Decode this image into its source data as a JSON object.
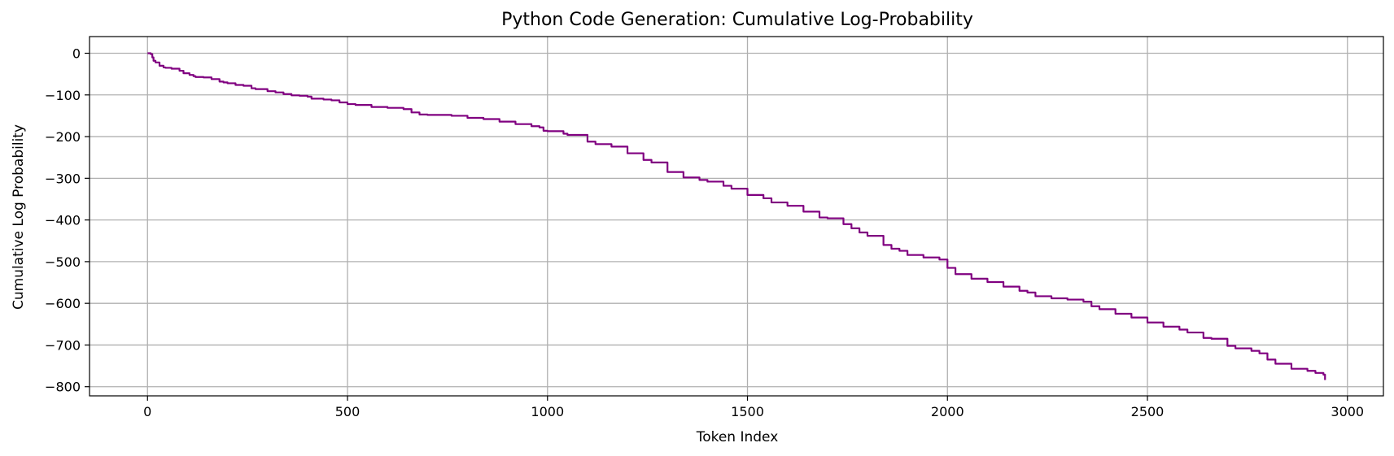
{
  "chart_data": {
    "type": "line",
    "title": "Python Code Generation: Cumulative Log-Probability",
    "xlabel": "Token Index",
    "ylabel": "Cumulative Log Probability",
    "xlim": [
      -145,
      3090
    ],
    "ylim": [
      -822,
      40
    ],
    "x_ticks": [
      0,
      500,
      1000,
      1500,
      2000,
      2500,
      3000
    ],
    "y_ticks": [
      0,
      -100,
      -200,
      -300,
      -400,
      -500,
      -600,
      -700,
      -800
    ],
    "x_tick_labels": [
      "0",
      "500",
      "1000",
      "1500",
      "2000",
      "2500",
      "3000"
    ],
    "y_tick_labels": [
      "0",
      "−100",
      "−200",
      "−300",
      "−400",
      "−500",
      "−600",
      "−700",
      "−800"
    ],
    "grid": true,
    "line_color": "#800080",
    "series": [
      {
        "x": [
          0,
          8,
          12,
          15,
          20,
          30,
          40,
          45,
          60,
          80,
          90,
          105,
          115,
          120,
          140,
          160,
          180,
          190,
          200,
          220,
          240,
          260,
          270,
          300,
          320,
          340,
          360,
          380,
          400,
          410,
          440,
          460,
          480,
          500,
          520,
          560,
          600,
          640,
          660,
          680,
          700,
          760,
          800,
          840,
          880,
          920,
          960,
          980,
          990,
          1000,
          1040,
          1050,
          1100,
          1120,
          1160,
          1200,
          1240,
          1260,
          1300,
          1340,
          1380,
          1400,
          1440,
          1460,
          1500,
          1540,
          1560,
          1600,
          1640,
          1680,
          1700,
          1740,
          1760,
          1780,
          1800,
          1840,
          1860,
          1880,
          1900,
          1940,
          1980,
          1990,
          2000,
          2020,
          2060,
          2100,
          2140,
          2180,
          2200,
          2220,
          2260,
          2300,
          2340,
          2360,
          2380,
          2420,
          2460,
          2500,
          2540,
          2580,
          2600,
          2640,
          2660,
          2700,
          2720,
          2760,
          2780,
          2800,
          2820,
          2860,
          2900,
          2920,
          2940,
          2944
        ],
        "y": [
          0,
          -2,
          -10,
          -18,
          -22,
          -30,
          -34,
          -35,
          -37,
          -42,
          -48,
          -52,
          -55,
          -57,
          -58,
          -62,
          -68,
          -70,
          -72,
          -76,
          -78,
          -84,
          -86,
          -91,
          -94,
          -98,
          -101,
          -102,
          -104,
          -109,
          -111,
          -113,
          -118,
          -122,
          -124,
          -129,
          -131,
          -134,
          -142,
          -147,
          -148,
          -150,
          -155,
          -158,
          -164,
          -170,
          -175,
          -178,
          -186,
          -187,
          -193,
          -196,
          -212,
          -218,
          -224,
          -240,
          -256,
          -262,
          -285,
          -298,
          -304,
          -308,
          -318,
          -325,
          -340,
          -348,
          -358,
          -366,
          -380,
          -394,
          -396,
          -410,
          -420,
          -430,
          -438,
          -460,
          -469,
          -474,
          -484,
          -490,
          -495,
          -495,
          -515,
          -530,
          -541,
          -549,
          -560,
          -570,
          -574,
          -583,
          -588,
          -591,
          -596,
          -607,
          -614,
          -625,
          -634,
          -646,
          -656,
          -663,
          -670,
          -683,
          -685,
          -702,
          -708,
          -714,
          -720,
          -735,
          -745,
          -757,
          -762,
          -767,
          -771,
          -784
        ]
      }
    ]
  }
}
